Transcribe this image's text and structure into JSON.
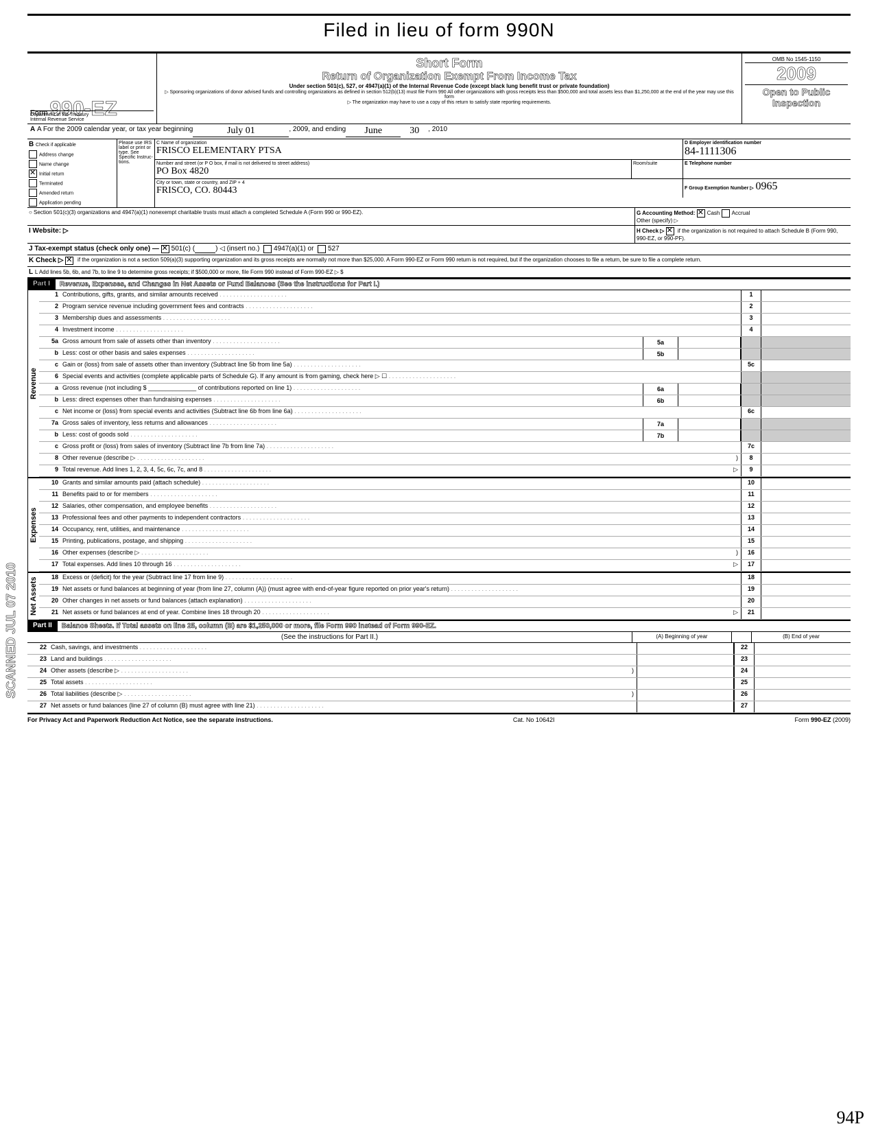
{
  "handwritten_top": "Filed in lieu of form 990N",
  "omb": "OMB No 1545-1150",
  "form_label": "Form",
  "form_number_outline": "990-EZ",
  "short_form": "Short Form",
  "return_title": "Return of Organization Exempt From Income Tax",
  "under_section": "Under section 501(c), 527, or 4947(a)(1) of the Internal Revenue Code (except black lung benefit trust or private foundation)",
  "sponsor_note": "▷ Sponsoring organizations of donor advised funds and controlling organizations as defined in section 512(b)(13) must file Form 990  All other organizations with gross receipts less than $500,000 and total assets less than $1,250,000 at the end of the year may use this form",
  "copy_note": "▷ The organization may have to use a copy of this return to satisfy state reporting requirements.",
  "dept": "Department of the Treasury",
  "irs": "Internal Revenue Service",
  "year_big": "2009",
  "open_public": "Open to Public",
  "inspection": "Inspection",
  "line_a_prefix": "A For the 2009 calendar year, or tax year beginning",
  "line_a_begin_hw": "July  01",
  "line_a_mid": ", 2009, and ending",
  "line_a_end_hw": "June",
  "line_a_end_day_hw": "30",
  "line_a_end_yr": ", 2010",
  "b_label": "B",
  "b_check": "Check if applicable",
  "b_items": [
    "Address change",
    "Name change",
    "Initial return",
    "Terminated",
    "Amended return",
    "Application pending"
  ],
  "please_use": "Please use IRS label or print or type. See Specific Instruc-tions.",
  "c_name_label": "C Name of organization",
  "c_name_hw": "FRISCO ELEMENTARY PTSA",
  "c_addr_label": "Number and street (or P O  box, if mail is not delivered to street address)",
  "c_addr_hw": "PO Box 4820",
  "room_label": "Room/suite",
  "c_city_label": "City or town, state or country, and ZIP + 4",
  "c_city_hw": "FRISCO, CO.  80443",
  "d_label": "D Employer identification number",
  "d_hw": "84-1111306",
  "e_label": "E Telephone number",
  "f_label": "F Group Exemption Number ▷",
  "f_hw": "0965",
  "sec501_note": "○ Section 501(c)(3) organizations and 4947(a)(1) nonexempt charitable trusts must attach a completed Schedule A (Form 990 or 990-EZ).",
  "g_label": "G Accounting Method:",
  "g_cash": "Cash",
  "g_accrual": "Accrual",
  "g_other": "Other (specify) ▷",
  "i_label": "I  Website: ▷",
  "h_label": "H Check ▷",
  "h_text": "if the organization is not required to attach Schedule B (Form 990, 990-EZ, or 990-PF).",
  "j_label": "J Tax-exempt status (check only one) —",
  "j_501c": "501(c) (",
  "j_insert": ") ◁ (insert no.)",
  "j_4947": "4947(a)(1) or",
  "j_527": "527",
  "k_label": "K Check ▷",
  "k_text": "if the organization is not a section 509(a)(3) supporting organization and its gross receipts are normally not more than $25,000.  A Form 990-EZ or Form 990 return is not required,  but if the organization chooses to file a return, be sure to file a complete return.",
  "l_text": "L Add lines 5b, 6b, and 7b, to line 9 to determine gross receipts; if $500,000 or more, file Form 990 instead of Form 990-EZ    ▷    $",
  "part1_label": "Part I",
  "part1_title": "Revenue, Expenses, and Changes in Net Assets or Fund Balances (See the instructions for Part I.)",
  "lines_part1": [
    {
      "n": "1",
      "d": "Contributions, gifts, grants, and similar amounts received",
      "box": "1"
    },
    {
      "n": "2",
      "d": "Program service revenue including government fees and contracts",
      "box": "2"
    },
    {
      "n": "3",
      "d": "Membership dues and assessments",
      "box": "3"
    },
    {
      "n": "4",
      "d": "Investment income",
      "box": "4"
    },
    {
      "n": "5a",
      "d": "Gross amount from sale of assets other than inventory",
      "mini": "5a"
    },
    {
      "n": "b",
      "d": "Less: cost or other basis and sales expenses",
      "mini": "5b"
    },
    {
      "n": "c",
      "d": "Gain or (loss) from sale of assets other than inventory (Subtract line 5b from line 5a)",
      "box": "5c"
    },
    {
      "n": "6",
      "d": "Special events and activities (complete applicable parts of Schedule G). If any amount is from gaming, check here ▷ ☐"
    },
    {
      "n": "a",
      "d": "Gross revenue (not including $ ______________ of contributions reported on line 1)",
      "mini": "6a"
    },
    {
      "n": "b",
      "d": "Less: direct expenses other than fundraising expenses",
      "mini": "6b"
    },
    {
      "n": "c",
      "d": "Net income or (loss) from special events and activities (Subtract line 6b from line 6a)",
      "box": "6c"
    },
    {
      "n": "7a",
      "d": "Gross sales of inventory, less returns and allowances",
      "mini": "7a"
    },
    {
      "n": "b",
      "d": "Less: cost of goods sold",
      "mini": "7b"
    },
    {
      "n": "c",
      "d": "Gross profit or (loss) from sales of inventory (Subtract line 7b from line 7a)",
      "box": "7c"
    },
    {
      "n": "8",
      "d": "Other revenue (describe ▷",
      "box": "8",
      "paren": ")"
    },
    {
      "n": "9",
      "d": "Total revenue. Add lines 1, 2, 3, 4, 5c, 6c, 7c, and 8",
      "box": "9",
      "tri": "▷"
    }
  ],
  "lines_expenses": [
    {
      "n": "10",
      "d": "Grants and similar amounts paid (attach schedule)",
      "box": "10"
    },
    {
      "n": "11",
      "d": "Benefits paid to or for members",
      "box": "11"
    },
    {
      "n": "12",
      "d": "Salaries, other compensation, and employee benefits",
      "box": "12"
    },
    {
      "n": "13",
      "d": "Professional fees and other payments to independent contractors",
      "box": "13"
    },
    {
      "n": "14",
      "d": "Occupancy, rent, utilities, and maintenance",
      "box": "14"
    },
    {
      "n": "15",
      "d": "Printing, publications, postage, and shipping",
      "box": "15"
    },
    {
      "n": "16",
      "d": "Other expenses (describe ▷",
      "box": "16",
      "paren": ")"
    },
    {
      "n": "17",
      "d": "Total expenses. Add lines 10 through 16",
      "box": "17",
      "tri": "▷"
    }
  ],
  "lines_net": [
    {
      "n": "18",
      "d": "Excess or (deficit) for the year (Subtract line 17 from line 9)",
      "box": "18"
    },
    {
      "n": "19",
      "d": "Net assets or fund balances at beginning of year (from line 27, column (A)) (must agree with end-of-year figure reported on prior year's return)",
      "box": "19"
    },
    {
      "n": "20",
      "d": "Other changes in net assets or fund balances (attach explanation)",
      "box": "20"
    },
    {
      "n": "21",
      "d": "Net assets or fund balances at end of year. Combine lines 18 through 20",
      "box": "21",
      "tri": "▷"
    }
  ],
  "part2_label": "Part II",
  "part2_title": "Balance Sheets. If Total assets on line 25, column (B) are $1,250,000 or more, file Form 990 instead of Form 990-EZ.",
  "part2_see": "(See the instructions for Part II.)",
  "col_a": "(A) Beginning of year",
  "col_b": "(B) End of year",
  "lines_part2": [
    {
      "n": "22",
      "d": "Cash, savings, and investments",
      "box": "22"
    },
    {
      "n": "23",
      "d": "Land and buildings",
      "box": "23"
    },
    {
      "n": "24",
      "d": "Other assets (describe ▷",
      "box": "24",
      "paren": ")"
    },
    {
      "n": "25",
      "d": "Total assets",
      "box": "25"
    },
    {
      "n": "26",
      "d": "Total liabilities (describe ▷",
      "box": "26",
      "paren": ")"
    },
    {
      "n": "27",
      "d": "Net assets or fund balances (line 27 of column (B) must agree with line 21)",
      "box": "27"
    }
  ],
  "footer_left": "For Privacy Act and Paperwork Reduction Act Notice, see the separate instructions.",
  "footer_mid": "Cat. No  10642I",
  "footer_right": "Form 990-EZ (2009)",
  "side_stamp": "SCANNED JUL 07 2010",
  "side_revenue": "Revenue",
  "side_expenses": "Expenses",
  "side_net": "Net Assets",
  "stamp_hw": "94P"
}
